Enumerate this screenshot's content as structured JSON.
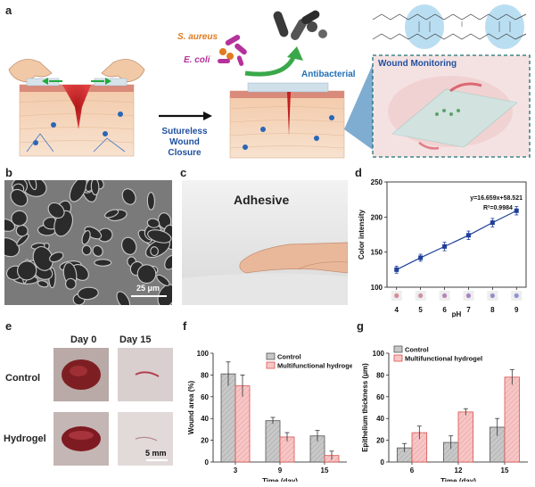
{
  "panel_labels": {
    "a": "a",
    "b": "b",
    "c": "c",
    "d": "d",
    "e": "e",
    "f": "f",
    "g": "g"
  },
  "panel_a": {
    "bacteria_1": "S. aureus",
    "bacteria_2": "E. coli",
    "arrow_caption_line1": "Sutureless",
    "arrow_caption_line2": "Wound Closure",
    "antibacterial": "Antibacterial",
    "wound_monitoring": "Wound Monitoring"
  },
  "panel_b": {
    "scale_bar": "25 μm"
  },
  "panel_c": {
    "title": "Adhesive"
  },
  "panel_e": {
    "col_day0": "Day 0",
    "col_day15": "Day 15",
    "row_control": "Control",
    "row_hydrogel": "Hydrogel",
    "scale_bar": "5 mm"
  },
  "colors": {
    "control": "#c8c8c8",
    "hydrogel": "#f7c6c6",
    "hydrogel_edge": "#d9534f",
    "line": "#1f3f99",
    "accent_red": "#d62a2a",
    "accent_blue": "#1f4f9f",
    "antibacterial_blue": "#1f6fb5",
    "bacteria_orange": "#e07b20",
    "bacteria_magenta": "#b4329a"
  },
  "chart_data": [
    {
      "panel": "d",
      "type": "line",
      "x": [
        4,
        5,
        6,
        7,
        8,
        9
      ],
      "y": [
        125,
        142,
        158,
        174,
        192,
        209
      ],
      "err": [
        5,
        5,
        6,
        6,
        6,
        6
      ],
      "xlabel": "pH",
      "ylabel": "Color intensity",
      "xlim": [
        3.6,
        9.4
      ],
      "ylim": [
        100,
        250
      ],
      "yticks": [
        100,
        150,
        200,
        250
      ],
      "equation": "y=16.659x+58.521",
      "r2": "R²=0.9984",
      "swatch_colors": [
        "#d98a9a",
        "#cf8fa8",
        "#b886b4",
        "#a884c0",
        "#9c8acb",
        "#8f92d4"
      ]
    },
    {
      "panel": "f",
      "type": "bar",
      "categories": [
        "3",
        "9",
        "15"
      ],
      "series": [
        {
          "name": "Control",
          "values": [
            81,
            38,
            24
          ],
          "err": [
            11,
            3,
            5
          ]
        },
        {
          "name": "Multifunctional hydrogel",
          "values": [
            70,
            23,
            6
          ],
          "err": [
            10,
            4,
            4
          ]
        }
      ],
      "xlabel": "Time (day)",
      "ylabel": "Wound area (%)",
      "ylim": [
        0,
        100
      ],
      "yticks": [
        0,
        20,
        40,
        60,
        80,
        100
      ],
      "legend": "top-right"
    },
    {
      "panel": "g",
      "type": "bar",
      "categories": [
        "6",
        "12",
        "15"
      ],
      "series": [
        {
          "name": "Control",
          "values": [
            13,
            18,
            32
          ],
          "err": [
            4,
            6,
            8
          ]
        },
        {
          "name": "Multifunctional hydrogel",
          "values": [
            27,
            46,
            78
          ],
          "err": [
            6,
            3,
            7
          ]
        }
      ],
      "xlabel": "Time (day)",
      "ylabel": "Epithelium thickness (μm)",
      "ylim": [
        0,
        100
      ],
      "yticks": [
        0,
        20,
        40,
        60,
        80,
        100
      ],
      "legend": "top-left"
    }
  ]
}
